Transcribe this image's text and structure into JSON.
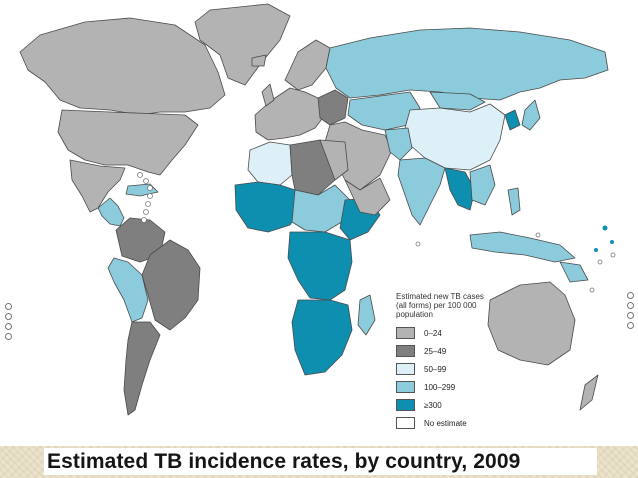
{
  "legend": {
    "title": "Estimated new TB cases (all forms) per 100 000 population",
    "items": [
      {
        "label": "0–24",
        "color": "#b3b3b3"
      },
      {
        "label": "25–49",
        "color": "#7f7f7f"
      },
      {
        "label": "50–99",
        "color": "#ddeff7"
      },
      {
        "label": "100–299",
        "color": "#8ccbdc"
      },
      {
        "label": "≥300",
        "color": "#0e8fb0"
      },
      {
        "label": "No estimate",
        "color": "#ffffff"
      }
    ]
  },
  "caption": "Estimated TB incidence rates, by country, 2009",
  "colors": {
    "border": "#4a4a4a",
    "caption_band": "#ece3cc"
  }
}
